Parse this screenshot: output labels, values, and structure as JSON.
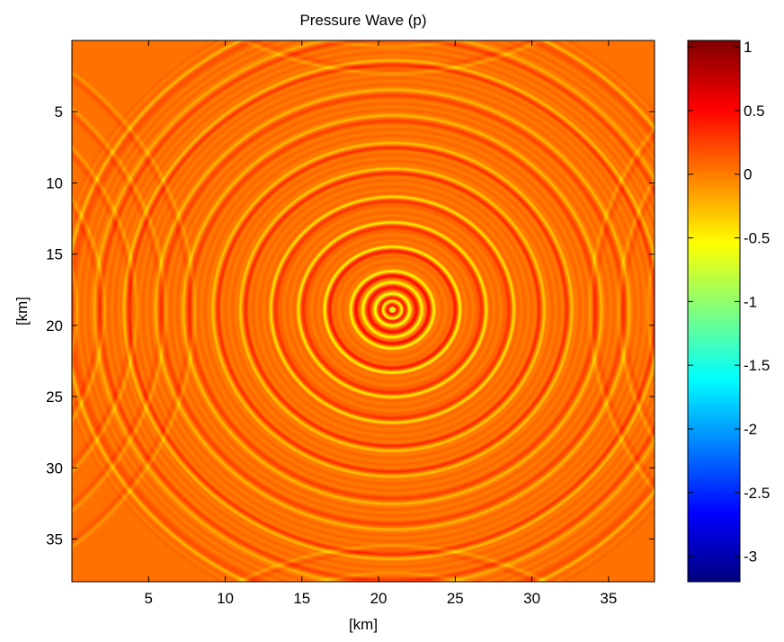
{
  "chart_data": {
    "type": "heatmap",
    "title": "Pressure Wave (p)",
    "xlabel": "[km]",
    "ylabel": "[km]",
    "xlim": [
      0,
      38
    ],
    "ylim": [
      0,
      38
    ],
    "y_direction": "reversed",
    "xticks": [
      5,
      10,
      15,
      20,
      25,
      30,
      35
    ],
    "yticks": [
      5,
      10,
      15,
      20,
      25,
      30,
      35
    ],
    "colormap": "jet",
    "colorbar": {
      "range": [
        -3.2,
        1.05
      ],
      "ticks": [
        1,
        0.5,
        0,
        -0.5,
        -1,
        -1.5,
        -2,
        -2.5,
        -3
      ],
      "tick_labels": [
        "1",
        "0.5",
        "0",
        "-0.5",
        "-1",
        "-1.5",
        "-2",
        "-2.5",
        "-3"
      ]
    },
    "background_value": 0.05,
    "source": {
      "x": 20.9,
      "y": 18.9,
      "center_value": -1.2
    },
    "ring_radii_km": [
      0.5,
      1.0,
      1.8,
      2.6,
      4.3,
      6.0,
      7.8,
      9.8,
      11.6,
      13.5,
      15.3,
      17.4,
      19.3,
      21.2
    ],
    "image_sources": [
      {
        "x": 20.9,
        "y": -19.0
      },
      {
        "x": 20.9,
        "y": 56.8
      },
      {
        "x": 55.1,
        "y": 18.9
      },
      {
        "x": -13.3,
        "y": 18.9
      }
    ]
  }
}
